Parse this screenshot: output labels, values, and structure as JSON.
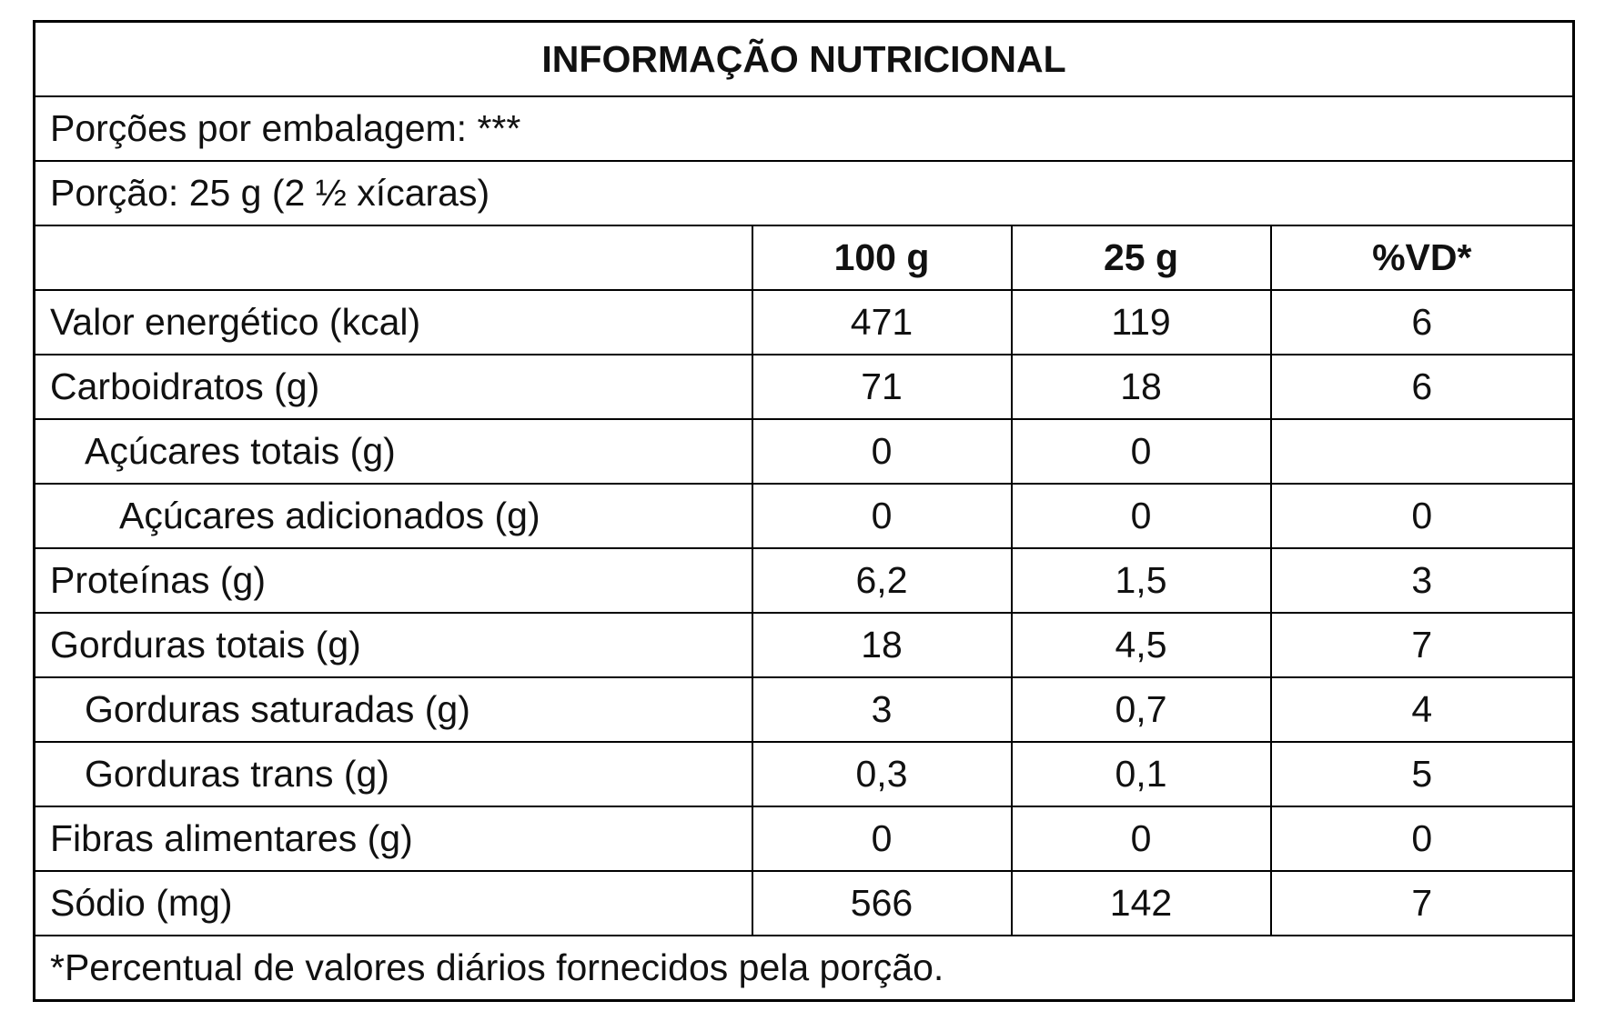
{
  "header": {
    "title": "INFORMAÇÃO NUTRICIONAL",
    "servings_per_package": "Porções por embalagem: ***",
    "serving_size": "Porção: 25 g (2 ½ xícaras)"
  },
  "table": {
    "columns": [
      "100 g",
      "25 g",
      "%VD*"
    ],
    "rows": [
      {
        "label": "Valor energético (kcal)",
        "values": [
          "471",
          "119",
          "6"
        ]
      },
      {
        "label": "Carboidratos (g)",
        "values": [
          "71",
          "18",
          "6"
        ]
      },
      {
        "label": "Açúcares totais (g)",
        "values": [
          "0",
          "0",
          null
        ]
      },
      {
        "label": "Açúcares adicionados (g)",
        "values": [
          "0",
          "0",
          "0"
        ]
      },
      {
        "label": "Proteínas (g)",
        "values": [
          "6,2",
          "1,5",
          "3"
        ]
      },
      {
        "label": "Gorduras totais (g)",
        "values": [
          "18",
          "4,5",
          "7"
        ]
      },
      {
        "label": "Gorduras saturadas (g)",
        "values": [
          "3",
          "0,7",
          "4"
        ]
      },
      {
        "label": "Gorduras trans (g)",
        "values": [
          "0,3",
          "0,1",
          "5"
        ]
      },
      {
        "label": "Fibras alimentares (g)",
        "values": [
          "0",
          "0",
          "0"
        ]
      },
      {
        "label": "Sódio (mg)",
        "values": [
          "566",
          "142",
          "7"
        ]
      }
    ]
  },
  "footnote": "*Percentual de valores diários fornecidos pela porção."
}
